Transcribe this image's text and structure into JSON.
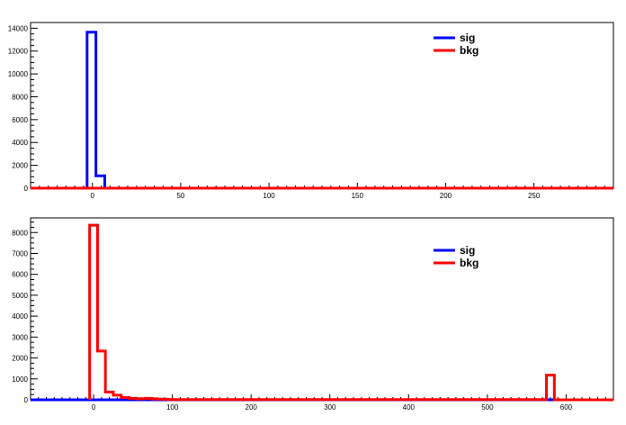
{
  "chart_data": [
    {
      "type": "histogram",
      "xlim": [
        -35,
        295
      ],
      "ylim": [
        0,
        14500
      ],
      "x_ticks": [
        0,
        50,
        100,
        150,
        200,
        250
      ],
      "y_ticks": [
        0,
        2000,
        4000,
        6000,
        8000,
        10000,
        12000,
        14000
      ],
      "legend": {
        "placement": "top-right",
        "entries": [
          {
            "name": "sig",
            "color": "#0000ff"
          },
          {
            "name": "bkg",
            "color": "#ff0000"
          }
        ]
      },
      "series": [
        {
          "name": "sig",
          "color": "#0000ff",
          "bins": [
            [
              -3,
              2,
              13650
            ],
            [
              2,
              7,
              1080
            ],
            [
              7,
              295,
              0
            ]
          ]
        },
        {
          "name": "bkg",
          "color": "#ff0000",
          "bins": [
            [
              -35,
              295,
              0
            ]
          ]
        }
      ]
    },
    {
      "type": "histogram",
      "xlim": [
        -80,
        660
      ],
      "ylim": [
        0,
        8700
      ],
      "x_ticks": [
        0,
        100,
        200,
        300,
        400,
        500,
        600
      ],
      "y_ticks": [
        0,
        1000,
        2000,
        3000,
        4000,
        5000,
        6000,
        7000,
        8000
      ],
      "legend": {
        "placement": "top-right",
        "entries": [
          {
            "name": "sig",
            "color": "#0000ff"
          },
          {
            "name": "bkg",
            "color": "#ff0000"
          }
        ]
      },
      "series": [
        {
          "name": "sig",
          "color": "#0000ff",
          "bins": [
            [
              -80,
              660,
              0
            ]
          ]
        },
        {
          "name": "bkg",
          "color": "#ff0000",
          "bins": [
            [
              -5,
              5,
              8350
            ],
            [
              5,
              15,
              2330
            ],
            [
              15,
              25,
              370
            ],
            [
              25,
              35,
              220
            ],
            [
              35,
              45,
              110
            ],
            [
              45,
              55,
              70
            ],
            [
              55,
              65,
              50
            ],
            [
              65,
              75,
              70
            ],
            [
              75,
              85,
              40
            ],
            [
              85,
              95,
              25
            ],
            [
              95,
              575,
              10
            ],
            [
              575,
              585,
              1180
            ],
            [
              585,
              660,
              0
            ]
          ]
        }
      ]
    }
  ]
}
